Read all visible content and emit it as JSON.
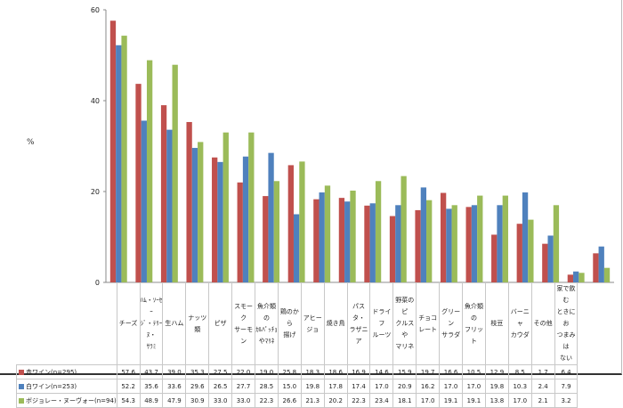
{
  "chart_data": {
    "type": "bar",
    "ylabel": "%",
    "ylim": [
      0,
      60
    ],
    "yticks": [
      0,
      20,
      40,
      60
    ],
    "grid": false,
    "legend_placement": "table-left",
    "categories": [
      "チーズ",
      "ﾊﾑ・ｿｰｾｰ\nｼﾞ・ﾃﾘｰﾇ・\nｻﾗﾐ",
      "生ハム",
      "ナッツ類",
      "ピザ",
      "スモーク\nサーモン",
      "魚介類の\nｶﾙﾊﾟｯﾁｮ\nやﾏﾘﾈ",
      "鶏のから\n揚げ",
      "アヒー\nジョ",
      "焼き鳥",
      "パスタ・\nラザニア",
      "ドライフ\nルーツ",
      "野菜のピ\nクルスや\nマリネ",
      "チョコ\nレート",
      "グリーン\nサラダ",
      "魚介類の\nフリット",
      "枝豆",
      "バーニャ\nカウダ",
      "その他",
      "家で飲む\nときにお\nつまみは\nない"
    ],
    "series": [
      {
        "name": "赤ワイン(n=295)",
        "color": "#c0504d",
        "values": [
          57.6,
          43.7,
          39.0,
          35.3,
          27.5,
          22.0,
          19.0,
          25.8,
          18.3,
          18.6,
          16.9,
          14.6,
          15.9,
          19.7,
          16.6,
          10.5,
          12.9,
          8.5,
          1.7,
          6.4
        ]
      },
      {
        "name": "白ワイン(n=253)",
        "color": "#4f81bd",
        "values": [
          52.2,
          35.6,
          33.6,
          29.6,
          26.5,
          27.7,
          28.5,
          15.0,
          19.8,
          17.8,
          17.4,
          17.0,
          20.9,
          16.2,
          17.0,
          17.0,
          19.8,
          10.3,
          2.4,
          7.9
        ]
      },
      {
        "name": "ボジョレー・ヌーヴォー(n=94)",
        "color": "#9bbb59",
        "values": [
          54.3,
          48.9,
          47.9,
          30.9,
          33.0,
          33.0,
          22.3,
          26.6,
          21.3,
          20.2,
          22.3,
          23.4,
          18.1,
          17.0,
          19.1,
          19.1,
          13.8,
          17.0,
          2.1,
          3.2
        ]
      }
    ]
  }
}
